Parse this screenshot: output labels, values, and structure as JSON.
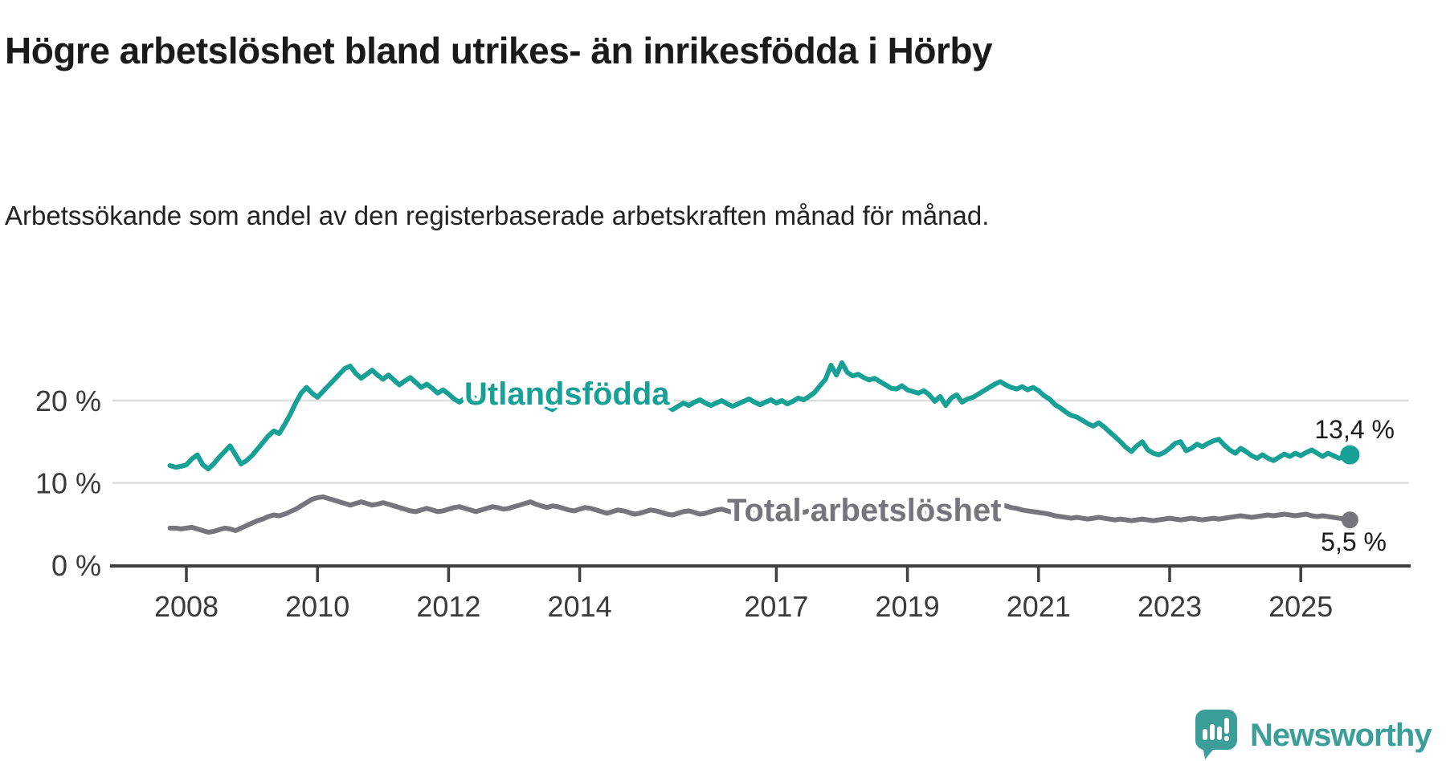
{
  "header": {
    "title": "Högre arbetslöshet bland utrikes- än inrikesfödda i Hörby",
    "subtitle": "Arbetssökande som andel av den registerbaserade arbetskraften månad för månad."
  },
  "branding": {
    "logo_text": "Newsworthy",
    "logo_color": "#3C9E99"
  },
  "chart_data": {
    "type": "line",
    "title": "Högre arbetslöshet bland utrikes- än inrikesfödda i Hörby",
    "xlabel": "",
    "ylabel": "Arbetssökande som andel av den registerbaserade arbetskraften",
    "x_unit": "månad (2007-10 till 2025-10)",
    "x_ticks": [
      "2008",
      "2010",
      "2012",
      "2014",
      "2017",
      "2019",
      "2021",
      "2023",
      "2025"
    ],
    "y_ticks": [
      {
        "label": "0 %",
        "value": 0
      },
      {
        "label": "10 %",
        "value": 10
      },
      {
        "label": "20 %",
        "value": 20
      }
    ],
    "ylim": [
      0,
      26
    ],
    "grid": "horizontal-only",
    "start_year": 2007.75,
    "months_per_point": 1,
    "series": [
      {
        "name": "Utlandsfödda",
        "color": "#17A096",
        "end_label": "13,4 %",
        "end_value": 13.4,
        "values": [
          12.1,
          11.9,
          12.0,
          12.2,
          12.9,
          13.4,
          12.2,
          11.7,
          12.3,
          13.1,
          13.8,
          14.5,
          13.4,
          12.3,
          12.7,
          13.3,
          14.1,
          14.9,
          15.7,
          16.3,
          16.0,
          17.1,
          18.3,
          19.7,
          20.9,
          21.6,
          20.9,
          20.4,
          21.1,
          21.8,
          22.5,
          23.2,
          23.9,
          24.2,
          23.3,
          22.7,
          23.2,
          23.7,
          23.1,
          22.6,
          23.1,
          22.5,
          21.9,
          22.4,
          22.8,
          22.2,
          21.6,
          22.0,
          21.5,
          20.9,
          21.3,
          20.8,
          20.2,
          19.8,
          20.3,
          20.7,
          20.2,
          19.8,
          20.2,
          19.8,
          19.5,
          19.9,
          20.3,
          19.9,
          19.6,
          20.0,
          20.4,
          20.0,
          19.6,
          19.2,
          18.9,
          19.4,
          19.8,
          20.2,
          19.8,
          20.1,
          19.7,
          20.0,
          19.6,
          19.9,
          20.2,
          19.8,
          19.5,
          19.8,
          20.1,
          19.7,
          20.0,
          19.6,
          19.9,
          20.2,
          19.8,
          19.4,
          18.9,
          19.3,
          19.7,
          19.4,
          19.8,
          20.1,
          19.7,
          19.4,
          19.7,
          20.0,
          19.6,
          19.3,
          19.6,
          19.9,
          20.2,
          19.8,
          19.5,
          19.8,
          20.1,
          19.7,
          20.0,
          19.6,
          19.9,
          20.3,
          20.1,
          20.5,
          21.0,
          21.8,
          22.6,
          24.3,
          23.1,
          24.6,
          23.4,
          23.0,
          23.2,
          22.8,
          22.5,
          22.7,
          22.3,
          21.9,
          21.5,
          21.4,
          21.8,
          21.3,
          21.1,
          20.9,
          21.2,
          20.7,
          19.9,
          20.5,
          19.4,
          20.3,
          20.7,
          19.8,
          20.2,
          20.4,
          20.8,
          21.2,
          21.6,
          22.0,
          22.3,
          21.9,
          21.6,
          21.4,
          21.7,
          21.3,
          21.6,
          21.2,
          20.6,
          20.2,
          19.5,
          19.1,
          18.6,
          18.2,
          18.0,
          17.6,
          17.2,
          16.9,
          17.3,
          16.8,
          16.2,
          15.6,
          15.0,
          14.3,
          13.8,
          14.5,
          15.0,
          14.0,
          13.6,
          13.4,
          13.7,
          14.2,
          14.8,
          15.0,
          13.9,
          14.2,
          14.7,
          14.4,
          14.8,
          15.1,
          15.3,
          14.6,
          14.0,
          13.6,
          14.2,
          13.8,
          13.3,
          13.0,
          13.4,
          13.0,
          12.7,
          13.1,
          13.5,
          13.2,
          13.6,
          13.3,
          13.7,
          14.0,
          13.6,
          13.2,
          13.6,
          13.3,
          13.0,
          13.2,
          13.4
        ]
      },
      {
        "name": "Total arbetslöshet",
        "color": "#75757B",
        "end_label": "5,5 %",
        "end_value": 5.5,
        "values": [
          4.5,
          4.5,
          4.4,
          4.5,
          4.6,
          4.4,
          4.2,
          4.0,
          4.1,
          4.3,
          4.5,
          4.4,
          4.2,
          4.5,
          4.8,
          5.1,
          5.4,
          5.6,
          5.9,
          6.1,
          6.0,
          6.2,
          6.5,
          6.8,
          7.2,
          7.6,
          8.0,
          8.2,
          8.3,
          8.1,
          7.9,
          7.7,
          7.5,
          7.3,
          7.5,
          7.7,
          7.5,
          7.3,
          7.4,
          7.6,
          7.4,
          7.2,
          7.0,
          6.8,
          6.6,
          6.5,
          6.7,
          6.9,
          6.7,
          6.5,
          6.6,
          6.8,
          7.0,
          7.1,
          6.9,
          6.7,
          6.5,
          6.7,
          6.9,
          7.1,
          7.0,
          6.8,
          6.9,
          7.1,
          7.3,
          7.5,
          7.7,
          7.4,
          7.2,
          7.0,
          7.2,
          7.1,
          6.9,
          6.7,
          6.6,
          6.8,
          7.0,
          6.9,
          6.7,
          6.5,
          6.3,
          6.5,
          6.7,
          6.6,
          6.4,
          6.2,
          6.3,
          6.5,
          6.7,
          6.6,
          6.4,
          6.2,
          6.1,
          6.3,
          6.5,
          6.6,
          6.4,
          6.2,
          6.3,
          6.5,
          6.7,
          6.8,
          6.6,
          6.4,
          6.2,
          6.4,
          6.6,
          6.7,
          6.5,
          6.3,
          6.4,
          6.6,
          6.8,
          6.9,
          6.7,
          6.5,
          6.4,
          6.6,
          6.8,
          6.9,
          6.8,
          6.6,
          6.7,
          6.9,
          7.1,
          7.2,
          7.0,
          6.8,
          6.6,
          6.5,
          6.7,
          6.6,
          6.4,
          6.3,
          6.4,
          6.6,
          6.7,
          6.6,
          6.4,
          6.2,
          6.1,
          6.3,
          6.4,
          6.3,
          6.1,
          6.0,
          6.1,
          6.2,
          6.4,
          6.7,
          7.0,
          7.2,
          7.3,
          7.2,
          7.0,
          6.9,
          6.7,
          6.6,
          6.5,
          6.4,
          6.3,
          6.2,
          6.0,
          5.9,
          5.8,
          5.7,
          5.8,
          5.7,
          5.6,
          5.7,
          5.8,
          5.7,
          5.6,
          5.5,
          5.6,
          5.5,
          5.4,
          5.5,
          5.6,
          5.5,
          5.4,
          5.5,
          5.6,
          5.7,
          5.6,
          5.5,
          5.6,
          5.7,
          5.6,
          5.5,
          5.6,
          5.7,
          5.6,
          5.7,
          5.8,
          5.9,
          6.0,
          5.9,
          5.8,
          5.9,
          6.0,
          6.1,
          6.0,
          6.1,
          6.2,
          6.1,
          6.0,
          6.1,
          6.2,
          6.0,
          5.9,
          6.0,
          5.9,
          5.8,
          5.7,
          5.6,
          5.5
        ]
      }
    ]
  }
}
